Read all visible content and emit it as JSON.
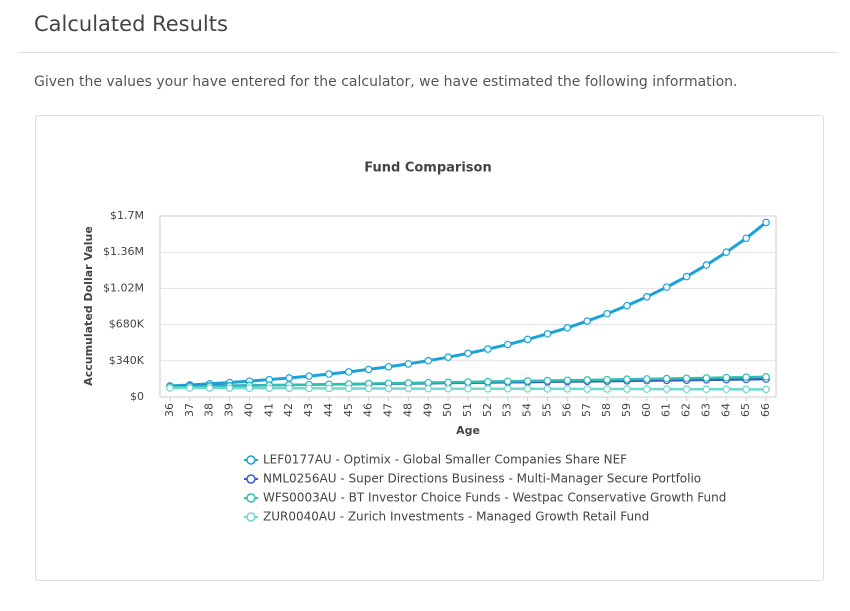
{
  "page": {
    "title": "Calculated Results",
    "intro": "Given the values your have entered for the calculator, we have estimated the following information."
  },
  "chart_data": {
    "type": "line",
    "title": "Fund Comparison",
    "x_label": "Age",
    "y_label": "Accumulated Dollar Value",
    "categories": [
      "36",
      "37",
      "38",
      "39",
      "40",
      "41",
      "42",
      "43",
      "44",
      "45",
      "46",
      "47",
      "48",
      "49",
      "50",
      "51",
      "52",
      "53",
      "54",
      "55",
      "56",
      "57",
      "58",
      "59",
      "60",
      "61",
      "62",
      "63",
      "64",
      "65",
      "66"
    ],
    "ylim": [
      0,
      1700000
    ],
    "yticks": [
      {
        "value": 0,
        "label": "$0"
      },
      {
        "value": 340000,
        "label": "$340K"
      },
      {
        "value": 680000,
        "label": "$680K"
      },
      {
        "value": 1020000,
        "label": "$1.02M"
      },
      {
        "value": 1360000,
        "label": "$1.36M"
      },
      {
        "value": 1700000,
        "label": "$1.7M"
      }
    ],
    "grid": true,
    "series": [
      {
        "name": "LEF0177AU - Optimix - Global Smaller Companies Share NEF",
        "color": "#1aa3d9",
        "values": [
          103000,
          113000,
          124000,
          136000,
          149000,
          163000,
          179000,
          196000,
          215000,
          236000,
          259000,
          284000,
          311000,
          341000,
          374000,
          410000,
          450000,
          493000,
          541000,
          593000,
          650000,
          713000,
          782000,
          858000,
          941000,
          1032000,
          1131000,
          1240000,
          1360000,
          1491000,
          1640000
        ]
      },
      {
        "name": "NML0256AU - Super Directions Business - Multi-Manager Secure Portfolio",
        "color": "#3a5bc7",
        "values": [
          100000,
          102000,
          104000,
          107000,
          109000,
          111000,
          113000,
          116000,
          118000,
          120000,
          122000,
          125000,
          127000,
          129000,
          131000,
          134000,
          136000,
          138000,
          140000,
          143000,
          145000,
          147000,
          149000,
          152000,
          154000,
          156000,
          158000,
          161000,
          163000,
          165000,
          168000
        ]
      },
      {
        "name": "WFS0003AU - BT Investor Choice Funds - Westpac Conservative Growth Fund",
        "color": "#2fbfb0",
        "values": [
          95000,
          98000,
          101000,
          104000,
          107000,
          110000,
          113000,
          116000,
          119000,
          122000,
          126000,
          129000,
          132000,
          135000,
          138000,
          141000,
          145000,
          148000,
          151000,
          154000,
          157000,
          160000,
          163000,
          167000,
          170000,
          173000,
          176000,
          179000,
          183000,
          186000,
          190000
        ]
      },
      {
        "name": "ZUR0040AU - Zurich Investments - Managed Growth Retail Fund",
        "color": "#6fd8d0",
        "values": [
          85000,
          84000,
          84000,
          83000,
          83000,
          82000,
          82000,
          81000,
          81000,
          80000,
          80000,
          79000,
          79000,
          78000,
          78000,
          78000,
          77000,
          77000,
          77000,
          76000,
          76000,
          75000,
          75000,
          75000,
          74000,
          74000,
          73000,
          73000,
          73000,
          72000,
          72000
        ]
      }
    ]
  }
}
